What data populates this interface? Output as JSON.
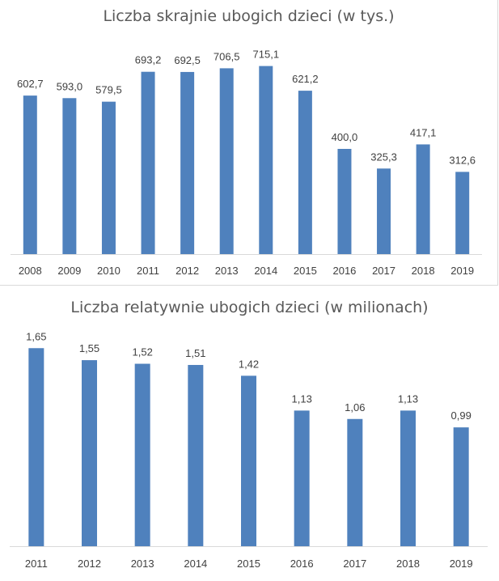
{
  "chart_data": [
    {
      "type": "bar",
      "title": "Liczba skrajnie ubogich dzieci (w tys.)",
      "categories": [
        "2008",
        "2009",
        "2010",
        "2011",
        "2012",
        "2013",
        "2014",
        "2015",
        "2016",
        "2017",
        "2018",
        "2019"
      ],
      "values": [
        602.7,
        593.0,
        579.5,
        693.2,
        692.5,
        706.5,
        715.1,
        621.2,
        400.0,
        325.3,
        417.1,
        312.6
      ],
      "data_labels": [
        "602,7",
        "593,0",
        "579,5",
        "693,2",
        "692,5",
        "706,5",
        "715,1",
        "621,2",
        "400,0",
        "325,3",
        "417,1",
        "312,6"
      ],
      "xlabel": "",
      "ylabel": "",
      "ylim": [
        0,
        800
      ],
      "grid": false,
      "color": "#4f81bd"
    },
    {
      "type": "bar",
      "title": "Liczba relatywnie ubogich dzieci (w milionach)",
      "categories": [
        "2011",
        "2012",
        "2013",
        "2014",
        "2015",
        "2016",
        "2017",
        "2018",
        "2019"
      ],
      "values": [
        1.65,
        1.55,
        1.52,
        1.51,
        1.42,
        1.13,
        1.06,
        1.13,
        0.99
      ],
      "data_labels": [
        "1,65",
        "1,55",
        "1,52",
        "1,51",
        "1,42",
        "1,13",
        "1,06",
        "1,13",
        "0,99"
      ],
      "xlabel": "",
      "ylabel": "",
      "ylim": [
        0,
        1.8
      ],
      "grid": false,
      "color": "#4f81bd"
    }
  ]
}
